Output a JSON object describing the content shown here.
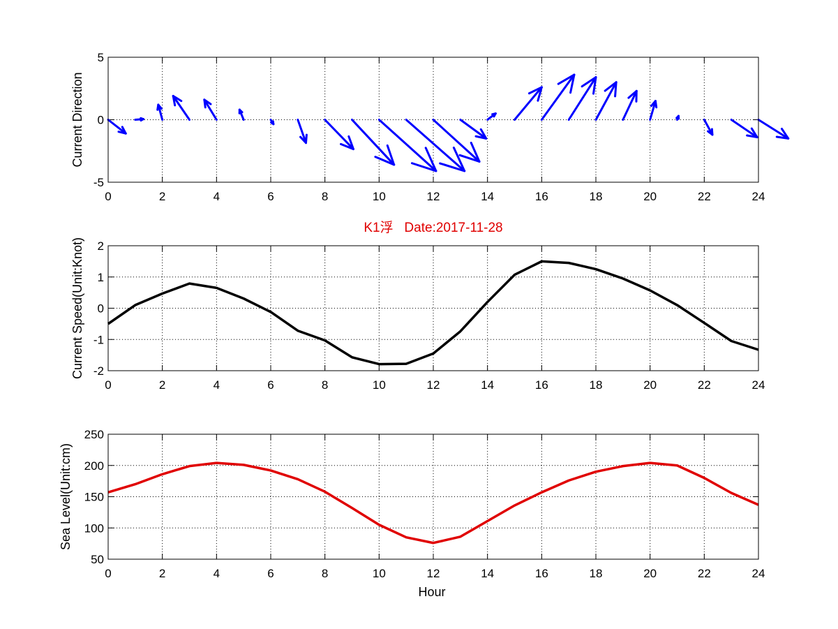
{
  "colors": {
    "quiver": "#0000ff",
    "speed": "#000000",
    "sea_level": "#e00000",
    "title": "#e00000"
  },
  "chart_data": [
    {
      "type": "quiver",
      "ylabel": "Current Direction",
      "xlim": [
        0,
        24
      ],
      "ylim": [
        -5,
        5
      ],
      "xticks": [
        "0",
        "2",
        "4",
        "6",
        "8",
        "10",
        "12",
        "14",
        "16",
        "18",
        "20",
        "22",
        "24"
      ],
      "yticks": [
        "-5",
        "0",
        "5"
      ],
      "grid": true,
      "x": [
        0,
        1,
        2,
        3,
        4,
        5,
        6,
        7,
        8,
        9,
        10,
        11,
        12,
        13,
        14,
        15,
        16,
        17,
        18,
        19,
        20,
        21,
        22,
        23,
        24
      ],
      "u": [
        0.65,
        0.3,
        -0.15,
        -0.6,
        -0.45,
        -0.15,
        0.1,
        0.3,
        1.05,
        1.55,
        2.1,
        2.15,
        1.7,
        0.95,
        0.3,
        1.0,
        1.2,
        1.0,
        0.75,
        0.5,
        0.2,
        0.05,
        0.3,
        0.95,
        1.1
      ],
      "v": [
        -1.1,
        0.05,
        1.2,
        1.9,
        1.6,
        0.8,
        -0.35,
        -1.85,
        -2.35,
        -3.6,
        -4.1,
        -4.1,
        -3.35,
        -1.5,
        0.5,
        2.6,
        3.6,
        3.4,
        3.0,
        2.3,
        1.5,
        0.3,
        -1.2,
        -1.4,
        -1.5
      ]
    },
    {
      "type": "line",
      "title": "K1浮   Date:2017-11-28",
      "ylabel": "Current Speed(Unit:Knot)",
      "xlim": [
        0,
        24
      ],
      "ylim": [
        -2,
        2
      ],
      "xticks": [
        "0",
        "2",
        "4",
        "6",
        "8",
        "10",
        "12",
        "14",
        "16",
        "18",
        "20",
        "22",
        "24"
      ],
      "yticks": [
        "-2",
        "-1",
        "0",
        "1",
        "2"
      ],
      "grid": true,
      "x": [
        0,
        1,
        2,
        3,
        4,
        5,
        6,
        7,
        8,
        9,
        10,
        11,
        12,
        13,
        14,
        15,
        16,
        17,
        18,
        19,
        20,
        21,
        22,
        23,
        24
      ],
      "values": [
        -0.5,
        0.1,
        0.47,
        0.79,
        0.65,
        0.31,
        -0.12,
        -0.72,
        -1.03,
        -1.57,
        -1.79,
        -1.78,
        -1.45,
        -0.74,
        0.2,
        1.07,
        1.5,
        1.45,
        1.25,
        0.95,
        0.57,
        0.1,
        -0.47,
        -1.05,
        -1.33
      ]
    },
    {
      "type": "line",
      "ylabel": "Sea Level(Unit:cm)",
      "xlabel": "Hour",
      "xlim": [
        0,
        24
      ],
      "ylim": [
        50,
        250
      ],
      "xticks": [
        "0",
        "2",
        "4",
        "6",
        "8",
        "10",
        "12",
        "14",
        "16",
        "18",
        "20",
        "22",
        "24"
      ],
      "yticks": [
        "50",
        "100",
        "150",
        "200",
        "250"
      ],
      "grid": true,
      "x": [
        0,
        1,
        2,
        3,
        4,
        5,
        6,
        7,
        8,
        9,
        10,
        11,
        12,
        13,
        14,
        15,
        16,
        17,
        18,
        19,
        20,
        21,
        22,
        23,
        24
      ],
      "values": [
        157,
        170,
        186,
        199,
        204,
        201,
        192,
        178,
        158,
        132,
        105,
        85,
        76,
        86,
        111,
        136,
        157,
        176,
        190,
        199,
        204,
        200,
        180,
        156,
        137
      ]
    }
  ]
}
